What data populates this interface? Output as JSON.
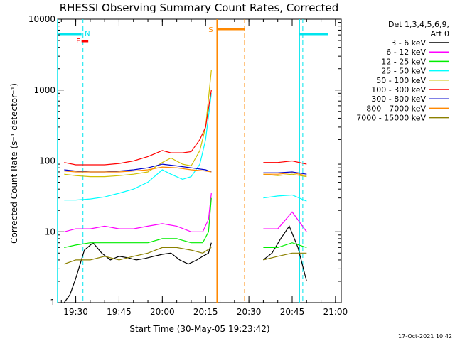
{
  "chart_data": {
    "type": "line",
    "title": "RHESSI Observing Summary Count Rates, Corrected",
    "xlabel": "Start Time (30-May-05 19:23:42)",
    "ylabel": "Corrected Count Rate (s⁻¹ detector⁻¹)",
    "timestamp": "17-Oct-2021 10:42",
    "y_scale": "log",
    "ylim": [
      1,
      10000
    ],
    "xlim": [
      "19:23:42",
      "21:02:00"
    ],
    "y_ticks": [
      "1",
      "10",
      "100",
      "1000",
      "10000"
    ],
    "x_ticks": [
      "19:30",
      "19:45",
      "20:00",
      "20:15",
      "20:30",
      "20:45",
      "21:00"
    ],
    "legend": {
      "header_line1": "Det 1,3,4,5,6,9,",
      "header_line2": "Att 0",
      "placement": "right"
    },
    "flags": {
      "night_label": "N",
      "flare_label": "F",
      "saa_label": "S"
    },
    "series": [
      {
        "name": "3 - 6 keV",
        "color": "#000000",
        "x": [
          "19:26",
          "19:28",
          "19:30",
          "19:33",
          "19:36",
          "19:39",
          "19:42",
          "19:45",
          "19:48",
          "19:51",
          "19:54",
          "19:57",
          "20:00",
          "20:03",
          "20:06",
          "20:09",
          "20:12",
          "20:14",
          "20:16",
          "20:17",
          "20:35",
          "20:38",
          "20:41",
          "20:44",
          "20:47",
          "20:50"
        ],
        "y": [
          1,
          1.3,
          2.2,
          5.5,
          7,
          5,
          4,
          4.5,
          4.3,
          4,
          4.2,
          4.5,
          4.8,
          5,
          4,
          3.5,
          4,
          4.5,
          5,
          7,
          4,
          5,
          8,
          12,
          6,
          2
        ]
      },
      {
        "name": "6 - 12 keV",
        "color": "#ff00ff",
        "x": [
          "19:26",
          "19:30",
          "19:35",
          "19:40",
          "19:45",
          "19:50",
          "19:55",
          "20:00",
          "20:05",
          "20:10",
          "20:14",
          "20:16",
          "20:17",
          "20:35",
          "20:40",
          "20:45",
          "20:50"
        ],
        "y": [
          10,
          11,
          11,
          12,
          11,
          11,
          12,
          13,
          12,
          10,
          10,
          15,
          35,
          11,
          11,
          19,
          10
        ]
      },
      {
        "name": "12 - 25 keV",
        "color": "#00ee00",
        "x": [
          "19:26",
          "19:30",
          "19:35",
          "19:40",
          "19:45",
          "19:50",
          "19:55",
          "20:00",
          "20:05",
          "20:10",
          "20:14",
          "20:16",
          "20:17",
          "20:35",
          "20:40",
          "20:45",
          "20:50"
        ],
        "y": [
          6,
          6.5,
          7,
          7,
          7,
          7,
          7,
          8,
          8,
          7,
          7,
          10,
          30,
          6,
          6,
          7,
          6
        ]
      },
      {
        "name": "25 - 50 keV",
        "color": "#00ffff",
        "x": [
          "19:26",
          "19:30",
          "19:35",
          "19:40",
          "19:45",
          "19:50",
          "19:55",
          "20:00",
          "20:03",
          "20:07",
          "20:10",
          "20:13",
          "20:15",
          "20:17",
          "20:35",
          "20:40",
          "20:45",
          "20:50"
        ],
        "y": [
          28,
          28,
          29,
          31,
          35,
          40,
          50,
          75,
          65,
          55,
          60,
          90,
          200,
          900,
          30,
          32,
          33,
          27
        ]
      },
      {
        "name": "50 - 100 keV",
        "color": "#d0c000",
        "x": [
          "19:26",
          "19:30",
          "19:35",
          "19:40",
          "19:45",
          "19:50",
          "19:55",
          "20:00",
          "20:03",
          "20:07",
          "20:10",
          "20:13",
          "20:15",
          "20:17",
          "20:35",
          "20:40",
          "20:45",
          "20:50"
        ],
        "y": [
          65,
          62,
          60,
          60,
          62,
          65,
          70,
          95,
          110,
          90,
          85,
          140,
          300,
          1900,
          65,
          62,
          65,
          60
        ]
      },
      {
        "name": "100 - 300 keV",
        "color": "#ff0000",
        "x": [
          "19:26",
          "19:30",
          "19:35",
          "19:40",
          "19:45",
          "19:50",
          "19:55",
          "20:00",
          "20:03",
          "20:07",
          "20:10",
          "20:13",
          "20:15",
          "20:17",
          "20:35",
          "20:40",
          "20:45",
          "20:50"
        ],
        "y": [
          95,
          88,
          88,
          88,
          92,
          100,
          115,
          140,
          130,
          130,
          135,
          200,
          300,
          1000,
          95,
          95,
          100,
          90
        ]
      },
      {
        "name": "300 - 800 keV",
        "color": "#0000cc",
        "x": [
          "19:26",
          "19:30",
          "19:35",
          "19:40",
          "19:45",
          "19:50",
          "19:55",
          "20:00",
          "20:05",
          "20:10",
          "20:15",
          "20:17",
          "20:35",
          "20:40",
          "20:45",
          "20:50"
        ],
        "y": [
          75,
          72,
          70,
          70,
          72,
          75,
          80,
          90,
          85,
          80,
          75,
          70,
          68,
          68,
          70,
          65
        ]
      },
      {
        "name": "800 - 7000 keV",
        "color": "#ff8800",
        "x": [
          "19:26",
          "19:30",
          "19:35",
          "19:40",
          "19:45",
          "19:50",
          "19:55",
          "20:00",
          "20:05",
          "20:10",
          "20:15",
          "20:17",
          "20:35",
          "20:40",
          "20:45",
          "20:50"
        ],
        "y": [
          72,
          70,
          70,
          70,
          70,
          72,
          75,
          82,
          80,
          75,
          72,
          70,
          65,
          65,
          68,
          62
        ]
      },
      {
        "name": "7000 - 15000 keV",
        "color": "#8b8000",
        "x": [
          "19:26",
          "19:30",
          "19:35",
          "19:40",
          "19:45",
          "19:50",
          "19:55",
          "20:00",
          "20:05",
          "20:10",
          "20:14",
          "20:17",
          "20:35",
          "20:40",
          "20:45",
          "20:50"
        ],
        "y": [
          3.5,
          4,
          4,
          4.5,
          4,
          4.5,
          5,
          6,
          6,
          5.5,
          5,
          6,
          4,
          4.5,
          5,
          5
        ]
      }
    ]
  }
}
